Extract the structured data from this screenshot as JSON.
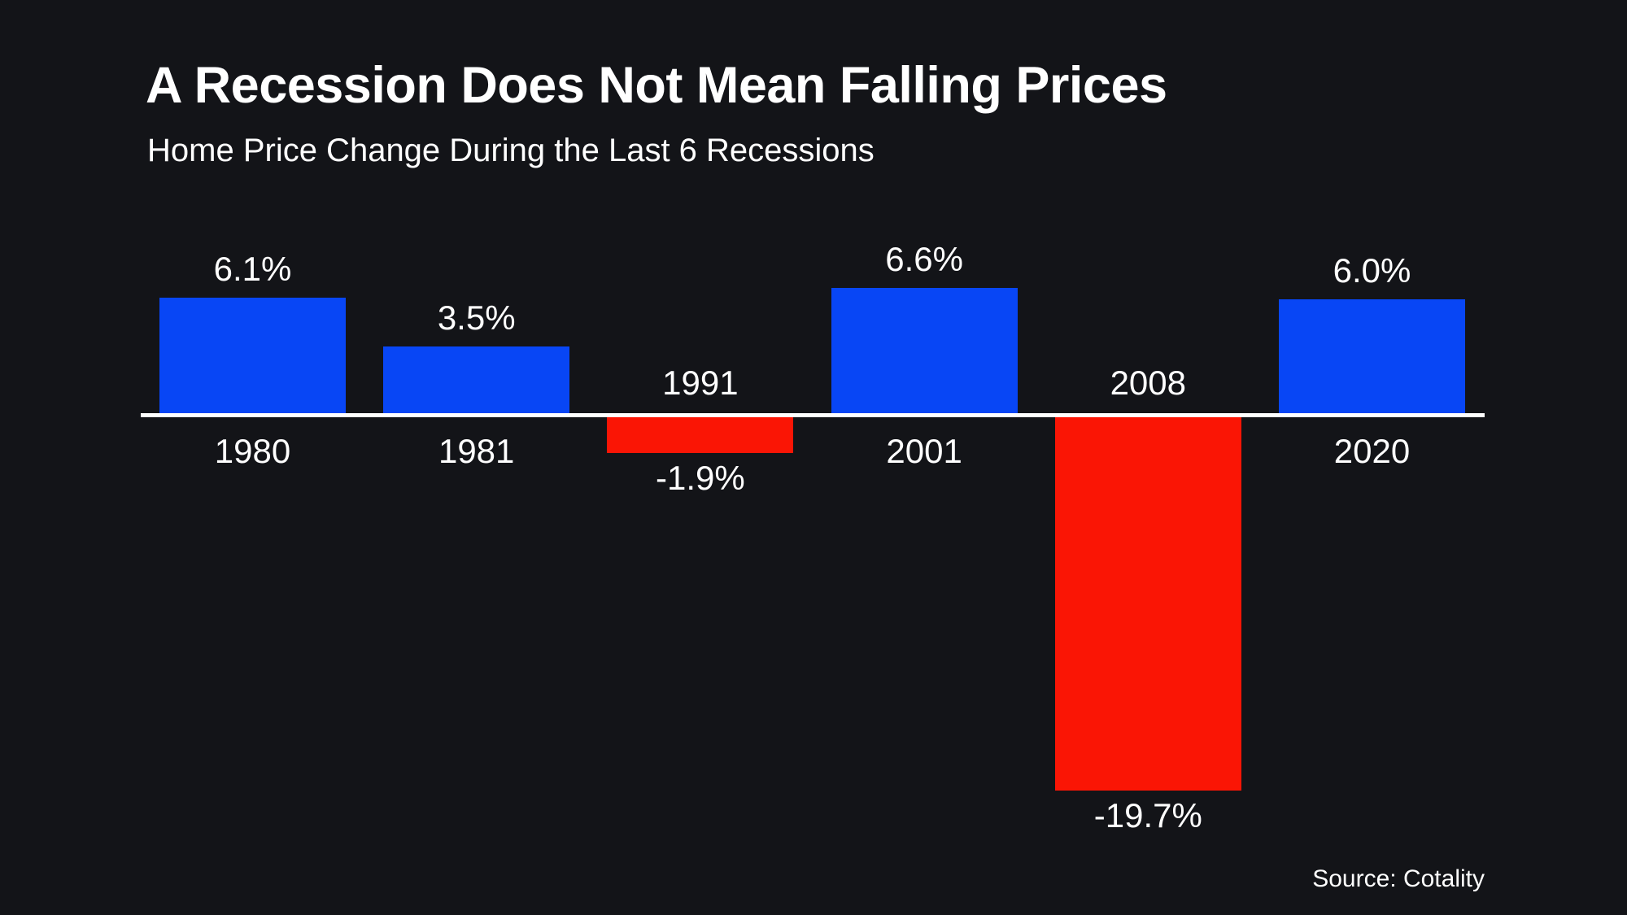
{
  "header": {
    "title": "A Recession Does Not Mean Falling Prices",
    "subtitle": "Home Price Change During the Last 6 Recessions"
  },
  "footer": {
    "source": "Source: Cotality"
  },
  "colors": {
    "background": "#131418",
    "positive_bar": "#0846F5",
    "negative_bar": "#FA1505",
    "axis": "#FFFFFF",
    "text": "#FFFFFF"
  },
  "chart_data": {
    "type": "bar",
    "title": "A Recession Does Not Mean Falling Prices",
    "subtitle": "Home Price Change During the Last 6 Recessions",
    "categories": [
      "1980",
      "1981",
      "1991",
      "2001",
      "2008",
      "2020"
    ],
    "values": [
      6.1,
      3.5,
      -1.9,
      6.6,
      -19.7,
      6.0
    ],
    "data_labels": [
      "6.1%",
      "3.5%",
      "-1.9%",
      "6.6%",
      "-19.7%",
      "6.0%"
    ],
    "xlabel": "",
    "ylabel": "",
    "ylim": [
      -21,
      8
    ],
    "grid": false,
    "legend": false,
    "baseline": 0,
    "positive_color": "#0846F5",
    "negative_color": "#FA1505",
    "source": "Source: Cotality"
  }
}
